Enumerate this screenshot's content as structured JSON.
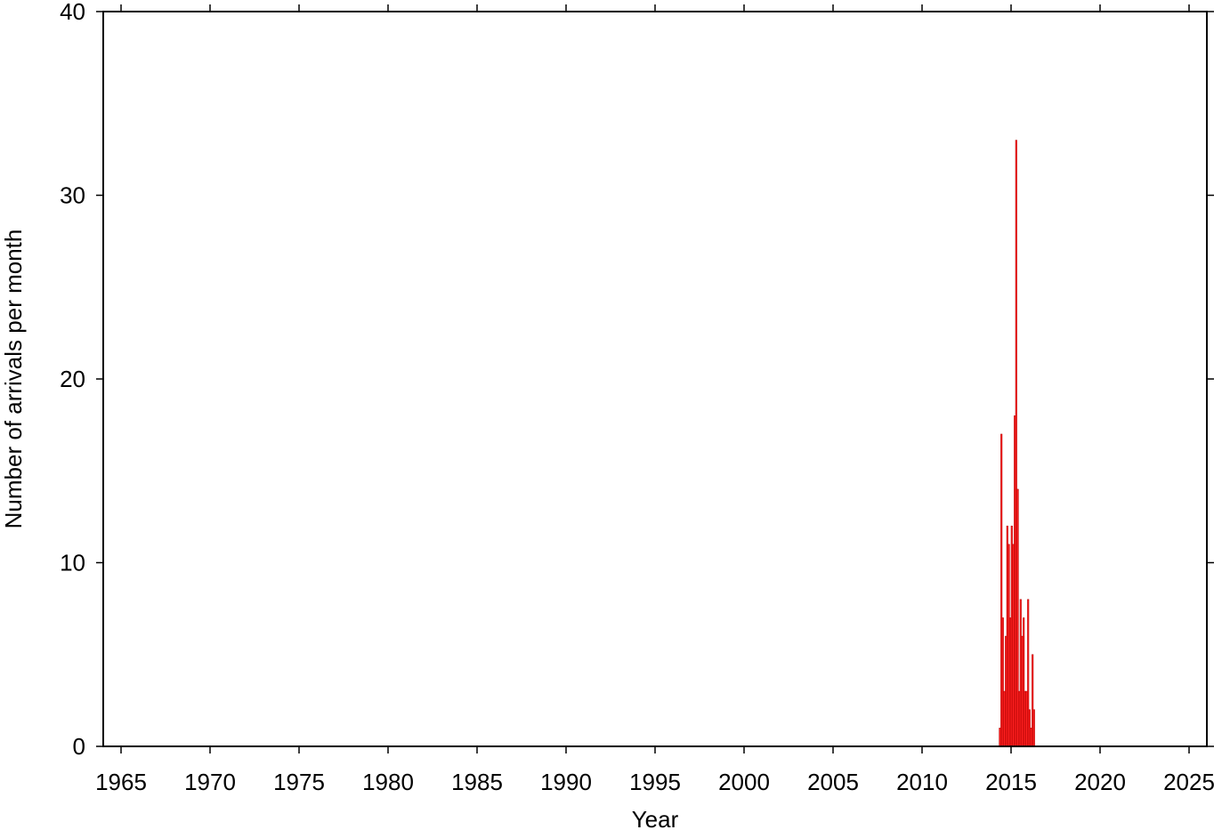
{
  "chart_data": {
    "type": "histogram",
    "x_label": "Year",
    "y_label": "Number of arrivals per month",
    "bins": [
      2014.33,
      2014.42,
      2014.5,
      2014.58,
      2014.67,
      2014.75,
      2014.83,
      2014.92,
      2015,
      2015.08,
      2015.17,
      2015.25,
      2015.33,
      2015.42,
      2015.5,
      2015.58,
      2015.67,
      2015.75,
      2015.83,
      2015.92,
      2016,
      2016.08,
      2016.17,
      2016.25,
      2016.33
    ],
    "values": [
      1,
      17,
      7,
      3,
      6,
      12,
      11,
      7,
      12,
      11,
      18,
      33,
      14,
      3,
      8,
      6,
      7,
      3,
      3,
      8,
      2,
      1,
      5,
      2
    ],
    "color": "#ff2020",
    "xlim": [
      1964,
      2026
    ],
    "xticks": [
      1965,
      1970,
      1975,
      1980,
      1985,
      1990,
      1995,
      2000,
      2005,
      2010,
      2015,
      2020,
      2025
    ],
    "ylim": [
      0,
      40
    ],
    "yticks": [
      0,
      10,
      20,
      30,
      40
    ]
  }
}
